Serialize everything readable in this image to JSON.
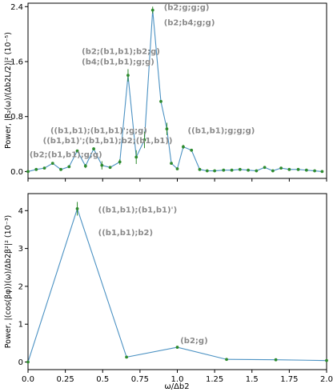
{
  "chart_data": [
    {
      "type": "line",
      "ylabel": "Power, |R₂(ω)/(Δb2L/2)|² (10⁻⁵)",
      "xlim": [
        0.0,
        2.0
      ],
      "ylim": [
        -0.1,
        2.45
      ],
      "yticks": [
        "0.0",
        "0.8",
        "1.6",
        "2.4"
      ],
      "ytick_values": [
        0.0,
        0.8,
        1.6,
        2.4
      ],
      "grid": false,
      "line_color": "#4c92c3",
      "point_color": "#2e8b2e",
      "series": [
        {
          "x": [
            0.0,
            0.055,
            0.11,
            0.165,
            0.22,
            0.275,
            0.33,
            0.385,
            0.44,
            0.495,
            0.55,
            0.615,
            0.67,
            0.725,
            0.78,
            0.835,
            0.89,
            0.93,
            0.96,
            1.0,
            1.04,
            1.095,
            1.15,
            1.2,
            1.25,
            1.31,
            1.365,
            1.42,
            1.475,
            1.53,
            1.585,
            1.64,
            1.695,
            1.75,
            1.81,
            1.865,
            1.92,
            1.97
          ],
          "y": [
            0.0,
            0.03,
            0.05,
            0.12,
            0.03,
            0.07,
            0.3,
            0.08,
            0.33,
            0.09,
            0.06,
            0.14,
            1.4,
            0.21,
            0.46,
            2.35,
            1.02,
            0.62,
            0.12,
            0.04,
            0.36,
            0.31,
            0.03,
            0.01,
            0.01,
            0.02,
            0.02,
            0.03,
            0.02,
            0.01,
            0.06,
            0.01,
            0.05,
            0.03,
            0.03,
            0.02,
            0.01,
            0.0
          ],
          "err": [
            0,
            0,
            0,
            0,
            0,
            0,
            0,
            0.03,
            0,
            0.06,
            0,
            0.04,
            0.09,
            0.1,
            0.12,
            0.05,
            0,
            0.09,
            0,
            0,
            0.03,
            0,
            0,
            0,
            0,
            0,
            0,
            0,
            0,
            0,
            0,
            0,
            0,
            0,
            0,
            0,
            0,
            0
          ]
        }
      ],
      "annotations": [
        {
          "text": "(b2;g;g;g)",
          "x": 0.91,
          "y": 2.35
        },
        {
          "text": "(b2;b4;g;g)",
          "x": 0.91,
          "y": 2.13
        },
        {
          "text": "(b2;(b1,b1);b2;g)",
          "x": 0.36,
          "y": 1.71
        },
        {
          "text": "(b4;(b1,b1);g;g)",
          "x": 0.36,
          "y": 1.56
        },
        {
          "text": "((b1,b1);(b1,b1)';g;g)",
          "x": 0.15,
          "y": 0.56
        },
        {
          "text": "((b1,b1)';(b1,b1);b2;(b1,b1))",
          "x": 0.1,
          "y": 0.41
        },
        {
          "text": "((b1,b1);g;g;g)",
          "x": 1.07,
          "y": 0.56
        },
        {
          "text": "(b2;(b1,b1);g;g)",
          "x": 0.01,
          "y": 0.21
        }
      ]
    },
    {
      "type": "line",
      "xlabel": "ω/Δb2",
      "ylabel": "Power, |(cos(βφ))(ω)/Δb2β²|² (10⁻³)",
      "xlim": [
        0.0,
        2.0
      ],
      "ylim": [
        -0.2,
        4.45
      ],
      "xticks": [
        "0.0",
        "0.25",
        "0.5",
        "0.75",
        "1.0",
        "1.25",
        "1.5",
        "1.75",
        "2.0"
      ],
      "xtick_values": [
        0.0,
        0.25,
        0.5,
        0.75,
        1.0,
        1.25,
        1.5,
        1.75,
        2.0
      ],
      "yticks": [
        "0",
        "1",
        "2",
        "3",
        "4"
      ],
      "ytick_values": [
        0,
        1,
        2,
        3,
        4
      ],
      "grid": false,
      "line_color": "#4c92c3",
      "point_color": "#2e8b2e",
      "series": [
        {
          "x": [
            0.0,
            0.33,
            0.66,
            1.0,
            1.33,
            1.66,
            2.0
          ],
          "y": [
            0.0,
            4.05,
            0.13,
            0.39,
            0.07,
            0.06,
            0.04
          ],
          "err": [
            0,
            0.18,
            0,
            0,
            0,
            0,
            0
          ]
        }
      ],
      "annotations": [
        {
          "text": "((b1,b1);(b1,b1)')",
          "x": 0.47,
          "y": 3.95
        },
        {
          "text": "((b1,b1);b2)",
          "x": 0.47,
          "y": 3.35
        },
        {
          "text": "(b2;g)",
          "x": 1.02,
          "y": 0.5
        }
      ]
    }
  ]
}
